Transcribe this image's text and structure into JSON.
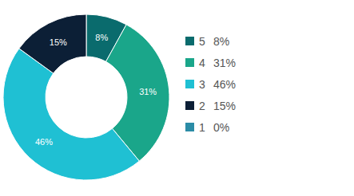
{
  "chart_data": {
    "type": "pie",
    "categories": [
      "5",
      "4",
      "3",
      "2",
      "1"
    ],
    "values": [
      8,
      31,
      46,
      15,
      0
    ],
    "value_labels": [
      "8%",
      "31%",
      "46%",
      "15%",
      "0%"
    ],
    "colors": [
      "#0a6b6d",
      "#1aa68a",
      "#1fc0d3",
      "#0c1f36",
      "#2b8ca6"
    ],
    "data_labels": true,
    "legend": "right"
  }
}
